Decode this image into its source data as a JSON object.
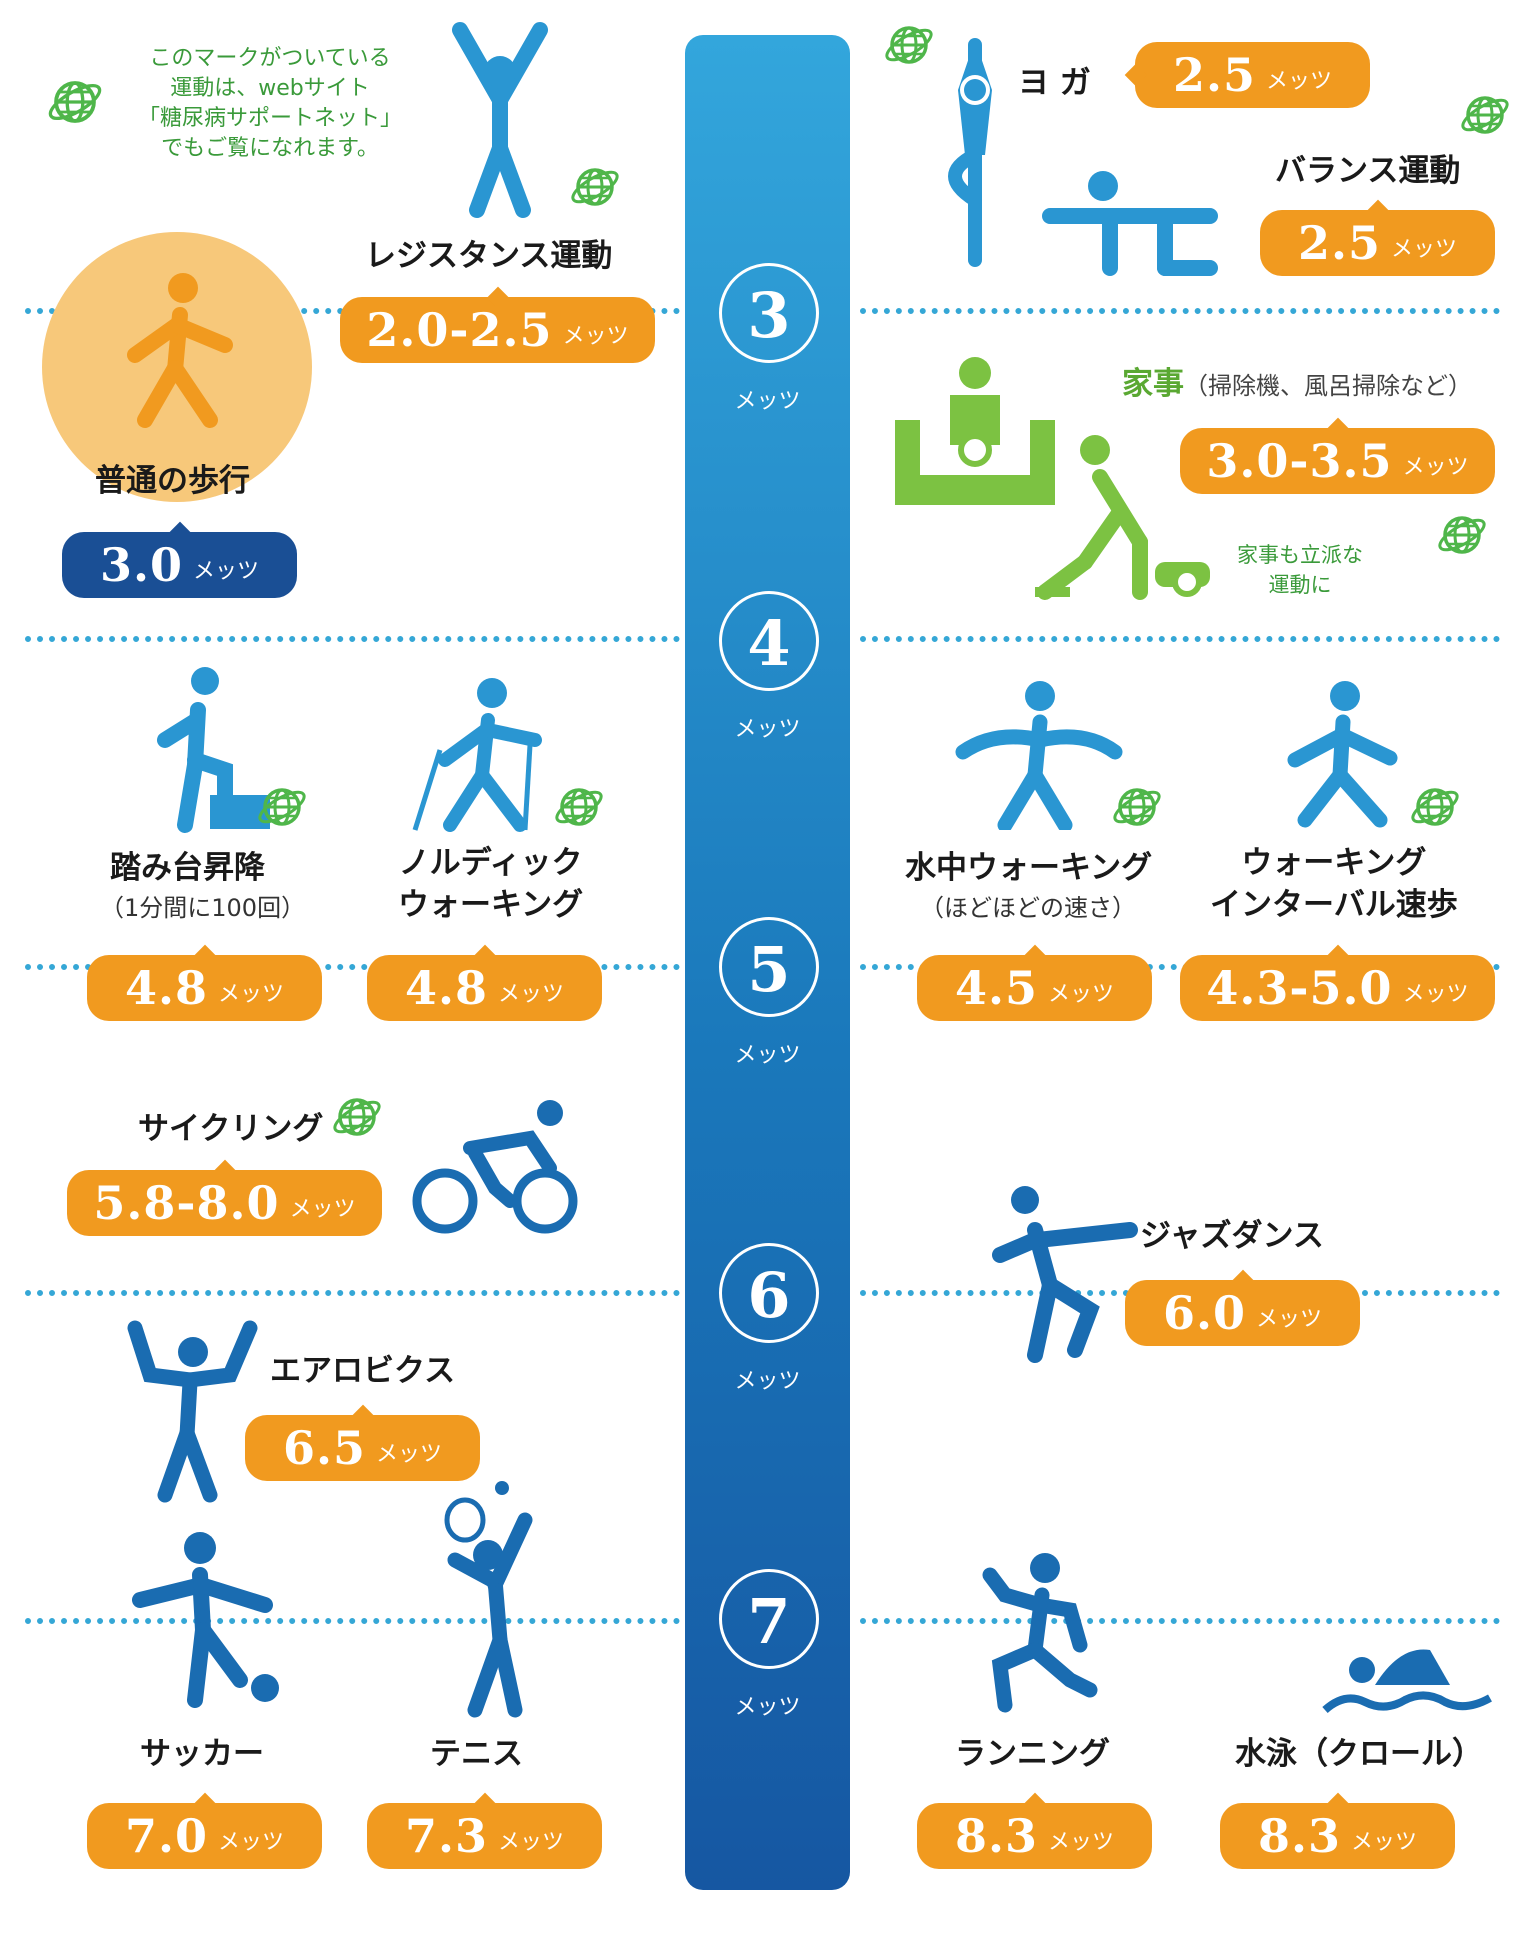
{
  "legend": {
    "note": [
      "このマークがついている",
      "運動は、webサイト",
      "「糖尿病サポートネット」",
      "でもご覧になれます。"
    ]
  },
  "scale": {
    "unit": "メッツ",
    "levels": [
      "3",
      "4",
      "5",
      "6",
      "7"
    ]
  },
  "activities": {
    "resistance": {
      "name": "レジスタンス運動",
      "mets": "2.0-2.5",
      "unit": "メッツ"
    },
    "yoga": {
      "name": "ヨ ガ",
      "mets": "2.5",
      "unit": "メッツ"
    },
    "balance": {
      "name": "バランス運動",
      "mets": "2.5",
      "unit": "メッツ"
    },
    "walking": {
      "name": "普通の歩行",
      "mets": "3.0",
      "unit": "メッツ"
    },
    "housework": {
      "name": "家事",
      "detail": "（掃除機、風呂掃除など）",
      "mets": "3.0-3.5",
      "unit": "メッツ",
      "note": [
        "家事も立派な",
        "運動に"
      ]
    },
    "stepup": {
      "name": "踏み台昇降",
      "detail": "（1分間に100回）",
      "mets": "4.8",
      "unit": "メッツ"
    },
    "nordic": {
      "name": [
        "ノルディック",
        "ウォーキング"
      ],
      "mets": "4.8",
      "unit": "メッツ"
    },
    "aquawalk": {
      "name": "水中ウォーキング",
      "detail": "（ほどほどの速さ）",
      "mets": "4.5",
      "unit": "メッツ"
    },
    "interval": {
      "name": [
        "ウォーキング",
        "インターバル速歩"
      ],
      "mets": "4.3-5.0",
      "unit": "メッツ"
    },
    "cycling": {
      "name": "サイクリング",
      "mets": "5.8-8.0",
      "unit": "メッツ"
    },
    "jazzdance": {
      "name": "ジャズダンス",
      "mets": "6.0",
      "unit": "メッツ"
    },
    "aerobics": {
      "name": "エアロビクス",
      "mets": "6.5",
      "unit": "メッツ"
    },
    "soccer": {
      "name": "サッカー",
      "mets": "7.0",
      "unit": "メッツ"
    },
    "tennis": {
      "name": "テニス",
      "mets": "7.3",
      "unit": "メッツ"
    },
    "running": {
      "name": "ランニング",
      "mets": "8.3",
      "unit": "メッツ"
    },
    "swimming": {
      "name": "水泳（クロール）",
      "mets": "8.3",
      "unit": "メッツ"
    }
  },
  "colors": {
    "accent": "#f19a1f",
    "bar": "#1a78bb",
    "figure": "#2a96d2",
    "navy": "#1a4f95",
    "green": "#7cc242",
    "globe": "#4fb64a"
  },
  "icons": [
    "globe-icon",
    "person-icon",
    "bicycle-icon",
    "vacuum-icon",
    "swimmer-icon"
  ]
}
